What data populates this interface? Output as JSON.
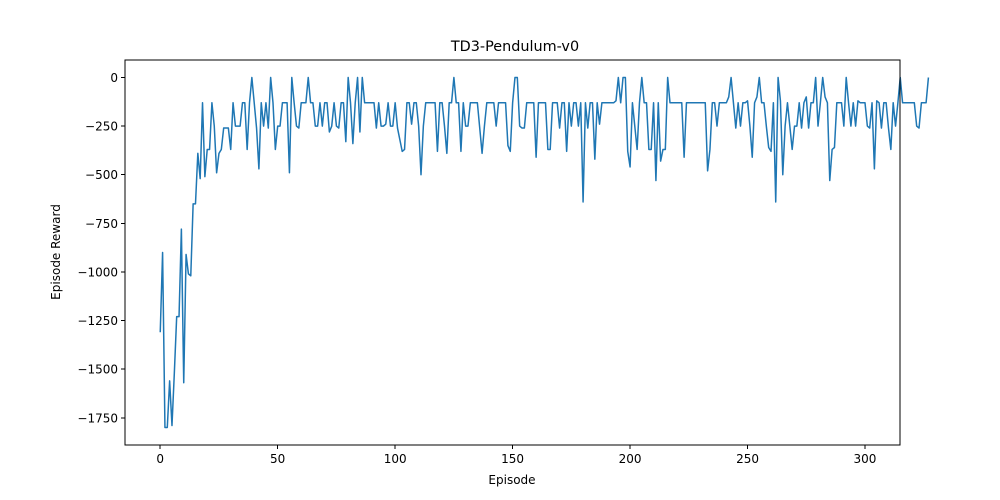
{
  "chart_data": {
    "type": "line",
    "title": "TD3-Pendulum-v0",
    "xlabel": "Episode",
    "ylabel": "Episode Reward",
    "xlim": [
      -15,
      314.9
    ],
    "ylim": [
      -1890,
      90
    ],
    "xticks": [
      0,
      50,
      100,
      150,
      200,
      250,
      300
    ],
    "yticks": [
      0,
      -250,
      -500,
      -750,
      -1000,
      -1250,
      -1500,
      -1750
    ],
    "ytick_labels": [
      "0",
      "−250",
      "−500",
      "−750",
      "−1000",
      "−1250",
      "−1500",
      "−1750"
    ],
    "grid": false,
    "line_color": "#1f77b4",
    "series": [
      {
        "values": [
          -1310,
          -900,
          -1800,
          -1800,
          -1560,
          -1790,
          -1520,
          -1230,
          -1230,
          -780,
          -1570,
          -910,
          -1010,
          -1020,
          -650,
          -650,
          -390,
          -520,
          -130,
          -510,
          -370,
          -370,
          -130,
          -250,
          -490,
          -390,
          -370,
          -260,
          -260,
          -260,
          -370,
          -130,
          -250,
          -250,
          -250,
          -130,
          -130,
          -370,
          -130,
          0,
          -130,
          -260,
          -470,
          -130,
          -250,
          -130,
          -260,
          0,
          -130,
          -370,
          -250,
          -250,
          -130,
          -130,
          -130,
          -490,
          0,
          -130,
          -250,
          -260,
          -130,
          -130,
          -130,
          0,
          -130,
          -130,
          -250,
          -250,
          -130,
          -250,
          -130,
          -130,
          -280,
          -250,
          -130,
          -250,
          -260,
          -130,
          -130,
          -330,
          0,
          -130,
          -340,
          -130,
          0,
          -280,
          0,
          -130,
          -130,
          -130,
          -130,
          -130,
          -260,
          -130,
          -250,
          -250,
          -240,
          -130,
          -250,
          -250,
          -130,
          -260,
          -320,
          -380,
          -370,
          -130,
          -130,
          -240,
          -130,
          -130,
          -250,
          -500,
          -250,
          -130,
          -130,
          -130,
          -130,
          -130,
          -380,
          -130,
          -130,
          -250,
          -390,
          -130,
          -130,
          0,
          -130,
          -130,
          -380,
          -130,
          -250,
          -250,
          -130,
          -130,
          -130,
          -130,
          -260,
          -390,
          -250,
          -130,
          -130,
          -130,
          -130,
          -250,
          -130,
          -130,
          -130,
          -130,
          -350,
          -380,
          -130,
          0,
          0,
          -250,
          -260,
          -260,
          -130,
          -130,
          -130,
          -130,
          -410,
          -130,
          -130,
          -130,
          -130,
          -370,
          -370,
          -130,
          -130,
          -130,
          -260,
          -130,
          -130,
          -380,
          -130,
          -250,
          -130,
          -130,
          -250,
          -130,
          -640,
          -130,
          -260,
          -130,
          -130,
          -420,
          -130,
          -240,
          -130,
          -130,
          -130,
          -130,
          -130,
          -130,
          -120,
          0,
          -130,
          0,
          0,
          -380,
          -460,
          -130,
          -250,
          -370,
          -130,
          0,
          -130,
          -130,
          -370,
          -370,
          -130,
          -530,
          -130,
          -430,
          -370,
          -370,
          0,
          -130,
          -130,
          -130,
          -130,
          -130,
          -130,
          -410,
          -130,
          -130,
          -130,
          -130,
          -130,
          -130,
          -130,
          -130,
          -130,
          -480,
          -370,
          -130,
          -130,
          -250,
          -130,
          -130,
          -130,
          -130,
          -100,
          0,
          -130,
          -260,
          -130,
          -250,
          -130,
          -130,
          -120,
          -250,
          -410,
          -130,
          -100,
          0,
          -130,
          -130,
          -250,
          -360,
          -380,
          -130,
          -640,
          0,
          -120,
          -500,
          -250,
          -130,
          -250,
          -370,
          -250,
          -250,
          -130,
          -260,
          -130,
          -100,
          -260,
          -130,
          -130,
          0,
          -250,
          -130,
          0,
          -100,
          -130,
          -530,
          -370,
          -360,
          -130,
          -130,
          -130,
          -250,
          0,
          -130,
          -250,
          -130,
          -250,
          -120,
          -130,
          -130,
          -130,
          -250,
          -260,
          -130,
          -470,
          -120,
          -130,
          -260,
          -130,
          -130,
          -260,
          -370,
          -130,
          -250,
          -130,
          0,
          -130,
          -130,
          -130,
          -130,
          -130,
          -130,
          -250,
          -260,
          -130,
          -130,
          -130,
          0
        ]
      }
    ]
  }
}
